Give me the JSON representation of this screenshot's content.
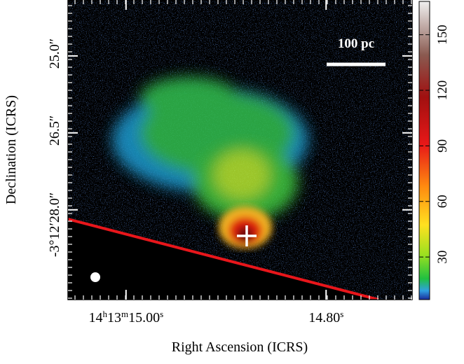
{
  "chart_data": {
    "type": "image",
    "xlabel": "Right Ascension (ICRS)",
    "ylabel": "Declination (ICRS)",
    "xlim": [
      15.058,
      14.714
    ],
    "xticks": [
      {
        "value": 15.0,
        "label": "14h13m15.00s"
      },
      {
        "value": 14.8,
        "label": "14.80s"
      }
    ],
    "ylim": [
      29.75,
      23.91
    ],
    "yticks": [
      {
        "value": 25.0,
        "label": "25.0″"
      },
      {
        "value": 26.5,
        "label": "26.5″"
      },
      {
        "value": 28.0,
        "label": "-3°12′28.0″"
      }
    ],
    "scalebar_label": "100 pc",
    "colorbar": {
      "lim": [
        7,
        168
      ],
      "ticks": [
        30,
        60,
        90,
        120,
        150
      ]
    }
  }
}
